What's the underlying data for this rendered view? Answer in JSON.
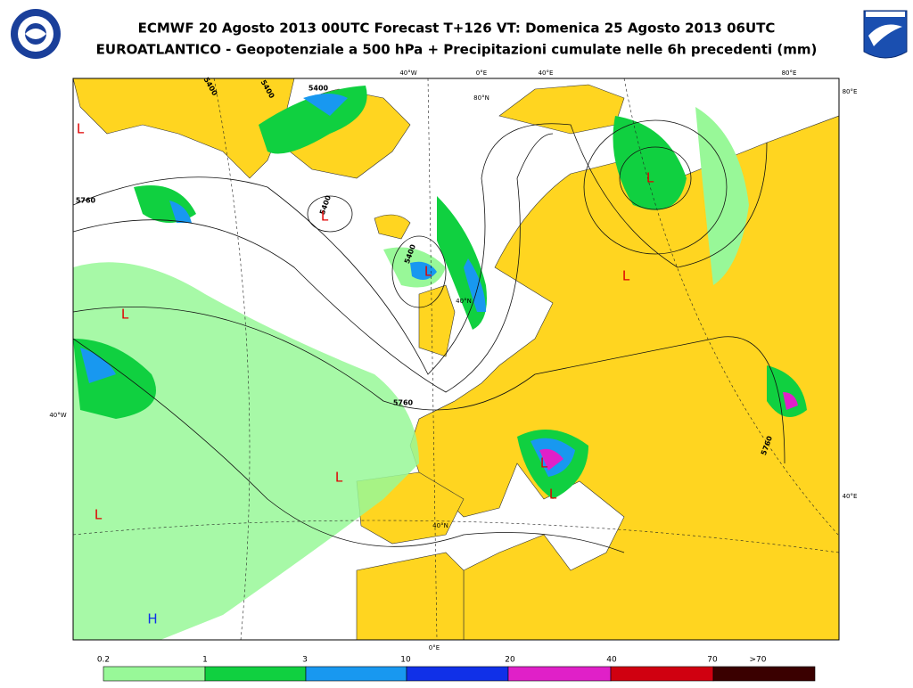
{
  "header": {
    "title": "ECMWF 20 Agosto 2013 00UTC Forecast T+126 VT: Domenica 25 Agosto 2013 06UTC",
    "subtitle": "EUROATLANTICO - Geopotenziale a 500 hPa + Precipitazioni cumulate nelle 6h precedenti (mm)"
  },
  "map": {
    "coordinate_labels": [
      "40°W",
      "0°E",
      "40°E",
      "80°E",
      "80°E",
      "40°E",
      "40°W",
      "80°N",
      "40°N",
      "40°N",
      "0°E"
    ],
    "contour_labels": [
      "5400",
      "5400",
      "5400",
      "5760",
      "5400",
      "5400",
      "5760",
      "5760"
    ],
    "lows": [
      "L",
      "L",
      "L",
      "L",
      "L",
      "L",
      "L",
      "L",
      "L",
      "L"
    ],
    "highs": [
      "H"
    ]
  },
  "legend": {
    "labels": [
      "0.2",
      "1",
      "3",
      "10",
      "20",
      "40",
      "70",
      ">70"
    ],
    "colors": [
      "#98f898",
      "#10d040",
      "#1898f0",
      "#1030e8",
      "#e020c8",
      "#d00010",
      "#3a0000"
    ]
  }
}
